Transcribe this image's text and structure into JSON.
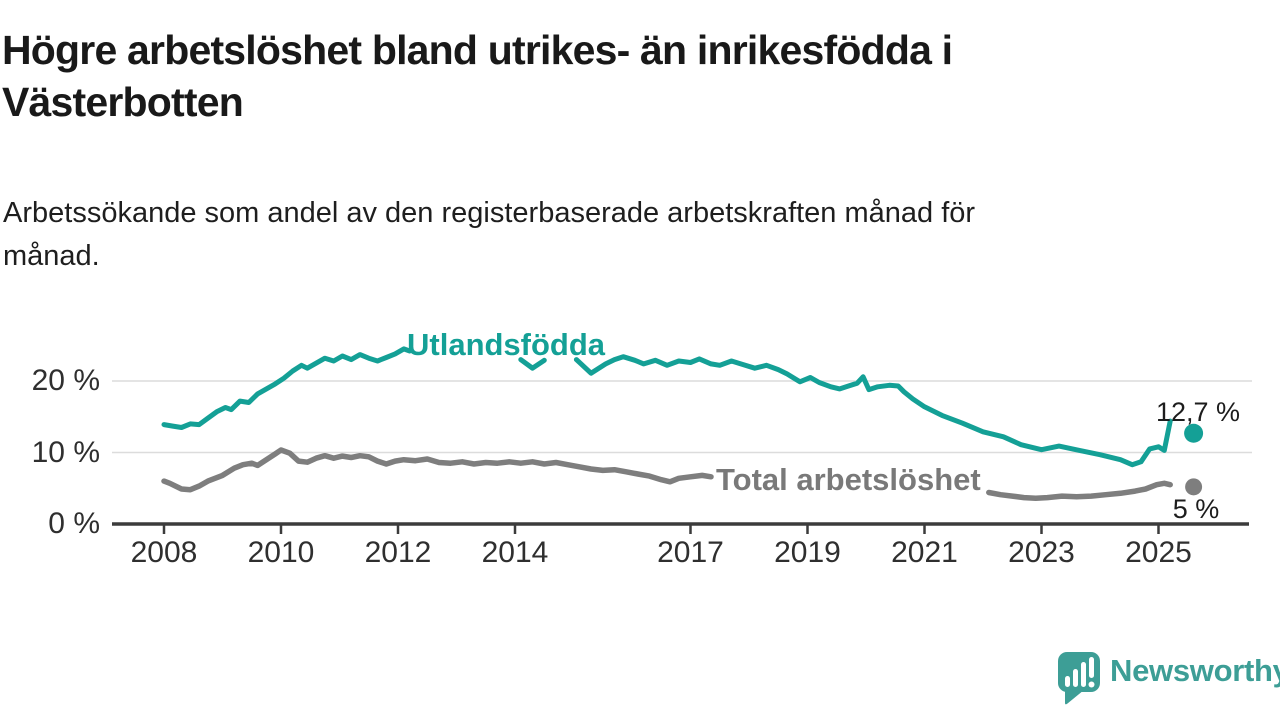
{
  "header": {
    "title_lines": [
      "Högre arbetslöshet bland utrikes- än inrikesfödda i",
      "Västerbotten"
    ],
    "subtitle_lines": [
      "Arbetssökande som andel av den registerbaserade arbetskraften månad för",
      "månad."
    ]
  },
  "chart_data": {
    "type": "line",
    "title": "Högre arbetslöshet bland utrikes- än inrikesfödda i Västerbotten",
    "subtitle": "Arbetssökande som andel av den registerbaserade arbetskraften månad för månad.",
    "unit": "%",
    "grid": "horizontal",
    "legend_position": "inline-labels-on-lines",
    "xlim": [
      2007.1,
      2026.5
    ],
    "ylim": [
      0,
      26
    ],
    "x_ticks": [
      2008,
      2010,
      2012,
      2014,
      2017,
      2019,
      2021,
      2023,
      2025
    ],
    "y_ticks": [
      {
        "value": 0,
        "label": "0 %"
      },
      {
        "value": 10,
        "label": "10 %"
      },
      {
        "value": 20,
        "label": "20 %"
      }
    ],
    "series": [
      {
        "name": "Utlandsfödda",
        "color": "#14a096",
        "line_width": 5,
        "end_dot": {
          "x": 2025.6,
          "value": 12.7,
          "label": "12,7 %",
          "radius": 9.5
        },
        "segments": [
          [
            [
              2008.0,
              13.9
            ],
            [
              2008.15,
              13.7
            ],
            [
              2008.3,
              13.5
            ],
            [
              2008.45,
              14.0
            ],
            [
              2008.6,
              13.9
            ],
            [
              2008.75,
              14.8
            ],
            [
              2008.9,
              15.7
            ],
            [
              2009.05,
              16.3
            ],
            [
              2009.15,
              16.0
            ],
            [
              2009.3,
              17.2
            ],
            [
              2009.45,
              17.0
            ],
            [
              2009.6,
              18.2
            ],
            [
              2009.75,
              18.9
            ],
            [
              2009.9,
              19.6
            ],
            [
              2010.05,
              20.4
            ],
            [
              2010.2,
              21.4
            ],
            [
              2010.35,
              22.2
            ],
            [
              2010.45,
              21.8
            ],
            [
              2010.6,
              22.5
            ],
            [
              2010.75,
              23.2
            ],
            [
              2010.9,
              22.8
            ],
            [
              2011.05,
              23.5
            ],
            [
              2011.2,
              23.0
            ],
            [
              2011.35,
              23.7
            ],
            [
              2011.5,
              23.2
            ],
            [
              2011.65,
              22.8
            ],
            [
              2011.8,
              23.3
            ],
            [
              2011.95,
              23.8
            ],
            [
              2012.1,
              24.5
            ],
            [
              2012.2,
              24.2
            ]
          ],
          [
            [
              2014.1,
              23.0
            ],
            [
              2014.3,
              21.8
            ],
            [
              2014.5,
              22.9
            ]
          ],
          [
            [
              2015.05,
              23.0
            ],
            [
              2015.3,
              21.1
            ],
            [
              2015.55,
              22.4
            ],
            [
              2015.7,
              23.0
            ],
            [
              2015.85,
              23.4
            ],
            [
              2016.05,
              22.9
            ],
            [
              2016.2,
              22.4
            ],
            [
              2016.4,
              22.9
            ],
            [
              2016.6,
              22.2
            ],
            [
              2016.8,
              22.8
            ],
            [
              2017.0,
              22.6
            ],
            [
              2017.15,
              23.1
            ],
            [
              2017.35,
              22.4
            ],
            [
              2017.5,
              22.2
            ],
            [
              2017.7,
              22.8
            ],
            [
              2017.9,
              22.3
            ],
            [
              2018.1,
              21.8
            ],
            [
              2018.3,
              22.2
            ],
            [
              2018.5,
              21.6
            ],
            [
              2018.65,
              21.0
            ],
            [
              2018.87,
              19.9
            ],
            [
              2019.05,
              20.5
            ],
            [
              2019.2,
              19.8
            ],
            [
              2019.4,
              19.2
            ],
            [
              2019.55,
              18.9
            ],
            [
              2019.7,
              19.3
            ],
            [
              2019.85,
              19.7
            ],
            [
              2019.95,
              20.6
            ],
            [
              2020.05,
              18.8
            ],
            [
              2020.2,
              19.2
            ],
            [
              2020.4,
              19.4
            ],
            [
              2020.55,
              19.3
            ],
            [
              2020.65,
              18.5
            ],
            [
              2020.8,
              17.5
            ],
            [
              2021.0,
              16.4
            ],
            [
              2021.3,
              15.2
            ],
            [
              2021.65,
              14.1
            ],
            [
              2022.0,
              12.9
            ],
            [
              2022.35,
              12.2
            ],
            [
              2022.65,
              11.1
            ],
            [
              2023.0,
              10.4
            ],
            [
              2023.3,
              10.9
            ],
            [
              2023.65,
              10.3
            ],
            [
              2024.0,
              9.7
            ],
            [
              2024.35,
              9.0
            ],
            [
              2024.55,
              8.3
            ],
            [
              2024.7,
              8.7
            ],
            [
              2024.85,
              10.5
            ],
            [
              2025.0,
              10.8
            ],
            [
              2025.1,
              10.3
            ],
            [
              2025.2,
              14.4
            ]
          ]
        ]
      },
      {
        "name": "Total arbetslöshet",
        "color": "#7e7e7e",
        "line_width": 5.5,
        "end_dot": {
          "x": 2025.6,
          "value": 5.2,
          "label": "5 %",
          "radius": 8.5
        },
        "segments": [
          [
            [
              2008.0,
              6.0
            ],
            [
              2008.1,
              5.7
            ],
            [
              2008.3,
              4.9
            ],
            [
              2008.45,
              4.8
            ],
            [
              2008.6,
              5.3
            ],
            [
              2008.75,
              6.0
            ],
            [
              2009.0,
              6.8
            ],
            [
              2009.2,
              7.8
            ],
            [
              2009.35,
              8.3
            ],
            [
              2009.5,
              8.5
            ],
            [
              2009.6,
              8.2
            ],
            [
              2009.75,
              9.0
            ],
            [
              2009.9,
              9.8
            ],
            [
              2010.0,
              10.35
            ],
            [
              2010.15,
              9.9
            ],
            [
              2010.3,
              8.8
            ],
            [
              2010.45,
              8.65
            ],
            [
              2010.6,
              9.2
            ],
            [
              2010.75,
              9.55
            ],
            [
              2010.9,
              9.2
            ],
            [
              2011.05,
              9.5
            ],
            [
              2011.2,
              9.3
            ],
            [
              2011.35,
              9.55
            ],
            [
              2011.5,
              9.4
            ],
            [
              2011.65,
              8.8
            ],
            [
              2011.8,
              8.4
            ],
            [
              2011.95,
              8.8
            ],
            [
              2012.1,
              9.0
            ],
            [
              2012.3,
              8.85
            ],
            [
              2012.5,
              9.1
            ],
            [
              2012.7,
              8.6
            ],
            [
              2012.9,
              8.5
            ],
            [
              2013.1,
              8.7
            ],
            [
              2013.3,
              8.4
            ],
            [
              2013.5,
              8.6
            ],
            [
              2013.7,
              8.5
            ],
            [
              2013.9,
              8.7
            ],
            [
              2014.1,
              8.5
            ],
            [
              2014.3,
              8.7
            ],
            [
              2014.5,
              8.4
            ],
            [
              2014.7,
              8.6
            ],
            [
              2014.9,
              8.3
            ],
            [
              2015.1,
              8.0
            ],
            [
              2015.3,
              7.7
            ],
            [
              2015.5,
              7.5
            ],
            [
              2015.7,
              7.6
            ],
            [
              2015.9,
              7.3
            ],
            [
              2016.1,
              7.0
            ],
            [
              2016.3,
              6.7
            ],
            [
              2016.5,
              6.2
            ],
            [
              2016.65,
              5.9
            ],
            [
              2016.8,
              6.4
            ],
            [
              2017.0,
              6.6
            ],
            [
              2017.2,
              6.8
            ],
            [
              2017.35,
              6.6
            ]
          ],
          [
            [
              2022.1,
              4.4
            ],
            [
              2022.3,
              4.1
            ],
            [
              2022.5,
              3.9
            ],
            [
              2022.7,
              3.7
            ],
            [
              2022.9,
              3.6
            ],
            [
              2023.1,
              3.7
            ],
            [
              2023.35,
              3.9
            ],
            [
              2023.6,
              3.8
            ],
            [
              2023.85,
              3.9
            ],
            [
              2024.1,
              4.1
            ],
            [
              2024.35,
              4.3
            ],
            [
              2024.6,
              4.6
            ],
            [
              2024.78,
              4.9
            ],
            [
              2024.97,
              5.5
            ],
            [
              2025.1,
              5.7
            ],
            [
              2025.2,
              5.5
            ]
          ]
        ]
      }
    ]
  },
  "branding": {
    "name": "Newsworthy",
    "color": "#3d9e96"
  },
  "colors": {
    "background": "#ffffff",
    "title_text": "#191919",
    "subtitle_text": "#1e1e1e",
    "tick_text": "#2f2f2f",
    "value_text": "#1d1d1d",
    "grid": "#dcdcdc",
    "axis": "#3b3b3b",
    "series_teal": "#14a096",
    "series_gray": "#7e7e7e"
  }
}
